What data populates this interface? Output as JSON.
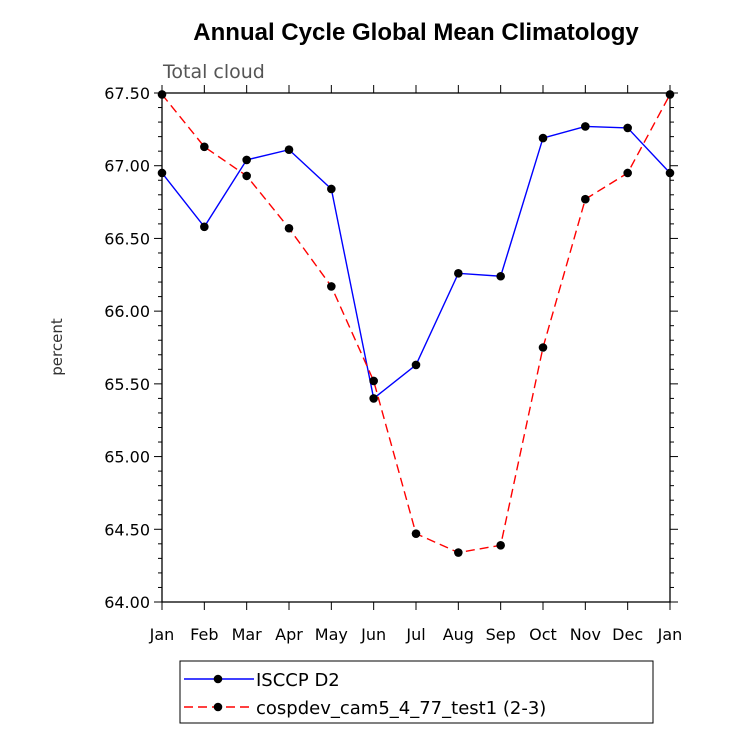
{
  "chart_data": {
    "type": "line",
    "title": "Annual Cycle Global Mean Climatology",
    "subtitle": "Total cloud",
    "xlabel": "",
    "ylabel": "percent",
    "categories": [
      "Jan",
      "Feb",
      "Mar",
      "Apr",
      "May",
      "Jun",
      "Jul",
      "Aug",
      "Sep",
      "Oct",
      "Nov",
      "Dec",
      "Jan"
    ],
    "ylim": [
      64.0,
      67.5
    ],
    "yticks": [
      "64.00",
      "64.50",
      "65.00",
      "65.50",
      "66.00",
      "66.50",
      "67.00",
      "67.50"
    ],
    "series": [
      {
        "name": "ISCCP D2",
        "color": "#0000ff",
        "dash": "solid",
        "values": [
          66.95,
          66.58,
          67.04,
          67.11,
          66.84,
          65.4,
          65.63,
          66.26,
          66.24,
          67.19,
          67.27,
          67.26,
          66.95
        ]
      },
      {
        "name": "cospdev_cam5_4_77_test1 (2-3)",
        "color": "#ff0000",
        "dash": "dashed",
        "values": [
          67.49,
          67.13,
          66.93,
          66.57,
          66.17,
          65.52,
          64.47,
          64.34,
          64.39,
          65.75,
          66.77,
          66.95,
          67.49
        ]
      }
    ]
  }
}
